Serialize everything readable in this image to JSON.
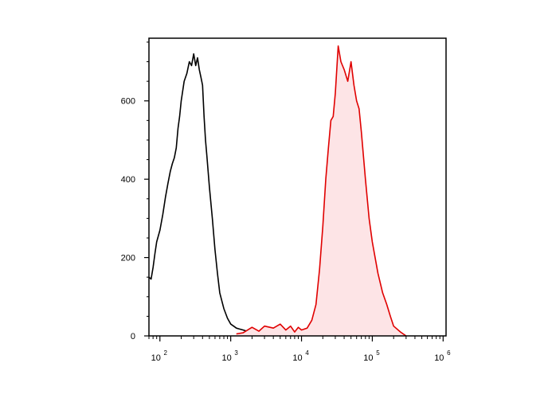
{
  "chart_data": {
    "type": "area",
    "title": "",
    "xlabel": "",
    "ylabel": "",
    "x_scale": "log",
    "xlim": [
      70,
      1100000
    ],
    "ylim": [
      0,
      760
    ],
    "grid": false,
    "legend": "none",
    "x_ticks": [
      {
        "value": 100,
        "base": "10",
        "exp": "2"
      },
      {
        "value": 1000,
        "base": "10",
        "exp": "3"
      },
      {
        "value": 10000,
        "base": "10",
        "exp": "4"
      },
      {
        "value": 100000,
        "base": "10",
        "exp": "5"
      },
      {
        "value": 1000000,
        "base": "10",
        "exp": "6"
      }
    ],
    "y_ticks": [
      {
        "value": 0,
        "label": "0"
      },
      {
        "value": 200,
        "label": "200"
      },
      {
        "value": 400,
        "label": "400"
      },
      {
        "value": 600,
        "label": "600"
      }
    ],
    "series": [
      {
        "color": "#000000",
        "fill": "none",
        "x": [
          70,
          75,
          80,
          85,
          90,
          100,
          110,
          120,
          130,
          140,
          150,
          160,
          170,
          180,
          190,
          200,
          220,
          240,
          260,
          280,
          300,
          320,
          340,
          360,
          380,
          400,
          420,
          440,
          460,
          480,
          500,
          550,
          600,
          650,
          700,
          800,
          900,
          1000,
          1100,
          1200,
          1300,
          1500,
          1700,
          2000,
          2500,
          3000,
          3500,
          4000,
          5000
        ],
        "y": [
          150,
          145,
          175,
          210,
          240,
          270,
          310,
          355,
          390,
          420,
          440,
          455,
          480,
          530,
          560,
          600,
          650,
          670,
          700,
          690,
          720,
          690,
          710,
          680,
          660,
          640,
          560,
          500,
          460,
          420,
          380,
          300,
          220,
          160,
          110,
          70,
          45,
          30,
          25,
          20,
          18,
          15,
          12,
          20,
          10,
          8,
          5,
          3,
          0
        ]
      },
      {
        "color": "#e00000",
        "fill": "#fde4e6",
        "x": [
          1200,
          1500,
          2000,
          2500,
          3000,
          4000,
          5000,
          6000,
          7000,
          8000,
          9000,
          10000,
          12000,
          14000,
          16000,
          18000,
          20000,
          22000,
          24000,
          26000,
          28000,
          30000,
          33000,
          36000,
          40000,
          45000,
          50000,
          55000,
          60000,
          65000,
          70000,
          80000,
          90000,
          100000,
          120000,
          140000,
          160000,
          180000,
          200000,
          250000,
          300000
        ],
        "y": [
          5,
          8,
          22,
          12,
          25,
          20,
          30,
          15,
          25,
          10,
          22,
          15,
          20,
          40,
          80,
          170,
          280,
          400,
          480,
          550,
          560,
          620,
          740,
          700,
          680,
          650,
          700,
          640,
          600,
          580,
          520,
          400,
          300,
          240,
          160,
          110,
          80,
          50,
          25,
          10,
          0
        ]
      }
    ]
  }
}
